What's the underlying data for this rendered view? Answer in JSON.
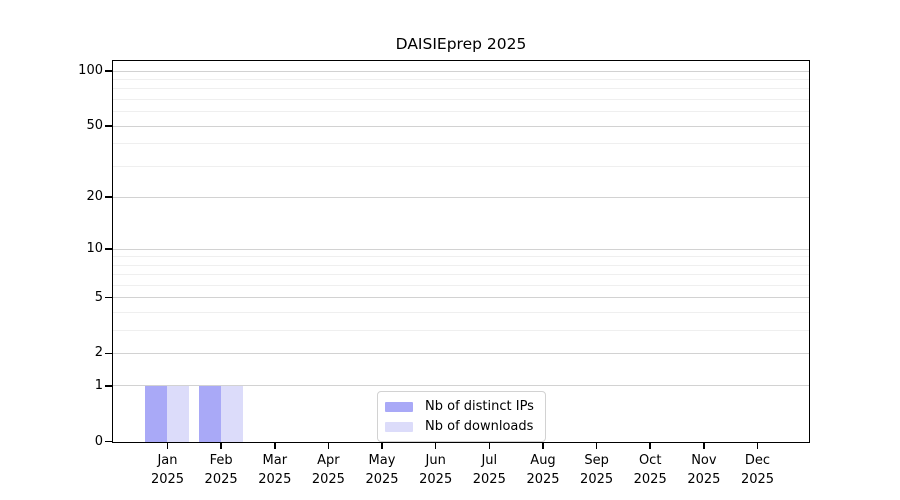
{
  "chart_data": {
    "type": "bar",
    "bar_layout": "grouped",
    "title": "DAISIEprep 2025",
    "categories": [
      "Jan 2025",
      "Feb 2025",
      "Mar 2025",
      "Apr 2025",
      "May 2025",
      "Jun 2025",
      "Jul 2025",
      "Aug 2025",
      "Sep 2025",
      "Oct 2025",
      "Nov 2025",
      "Dec 2025"
    ],
    "series": [
      {
        "name": "Nb of distinct IPs",
        "color": "#a9a9f7",
        "values": [
          1,
          1,
          0,
          0,
          0,
          0,
          0,
          0,
          0,
          0,
          0,
          0
        ]
      },
      {
        "name": "Nb of downloads",
        "color": "#dcdcfa",
        "values": [
          1,
          1,
          0,
          0,
          0,
          0,
          0,
          0,
          0,
          0,
          0,
          0
        ]
      }
    ],
    "xlabel": "",
    "ylabel": "",
    "y_scale": "log1p",
    "y_major_ticks": [
      0,
      1,
      2,
      5,
      10,
      20,
      50,
      100
    ],
    "y_minor_ticks": [
      3,
      4,
      6,
      7,
      8,
      9,
      30,
      40,
      60,
      70,
      80,
      90
    ],
    "ylim": [
      0,
      113
    ],
    "grid": "horizontal",
    "legend_position": "lower center"
  },
  "colors": {
    "bar_distinct_ips": "#a9a9f7",
    "bar_downloads": "#dcdcfa",
    "grid_major": "#d2d2d2",
    "grid_minor": "#efefef",
    "frame": "#000000",
    "legend_border": "#d2d2d2",
    "background": "#ffffff"
  }
}
